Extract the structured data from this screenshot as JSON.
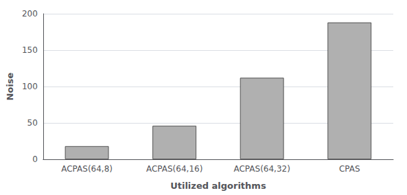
{
  "chart_data": {
    "type": "bar",
    "categories": [
      "ACPAS(64,8)",
      "ACPAS(64,16)",
      "ACPAS(64,32)",
      "CPAS"
    ],
    "values": [
      18,
      46,
      112,
      188
    ],
    "color": "#b0b0b0",
    "xlabel": "Utilized algorithms",
    "ylabel": "Noise",
    "ylim": [
      0,
      200
    ],
    "yticks": [
      0,
      50,
      100,
      150,
      200
    ],
    "grid": true
  }
}
